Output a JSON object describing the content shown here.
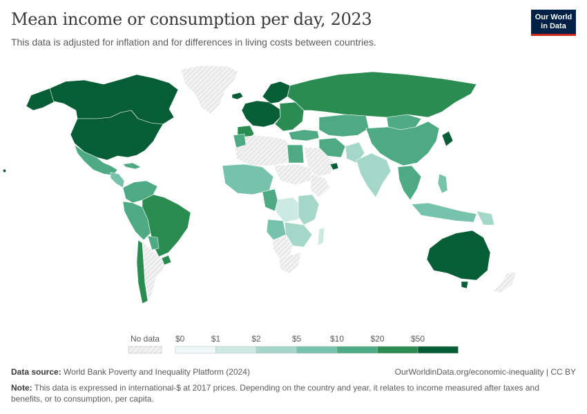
{
  "header": {
    "title": "Mean income or consumption per day, 2023",
    "subtitle": "This data is adjusted for inflation and for differences in living costs between countries."
  },
  "logo": {
    "line1": "Our World",
    "line2": "in Data"
  },
  "legend": {
    "no_data_label": "No data",
    "bins": [
      "$0",
      "$1",
      "$2",
      "$5",
      "$10",
      "$20",
      "$50"
    ],
    "colors": [
      "#eef8f6",
      "#cdeae2",
      "#a5d7c9",
      "#76c2ab",
      "#4daa82",
      "#2b8c52",
      "#075e36"
    ],
    "no_data_color": "#e8e8e8"
  },
  "footer": {
    "source_label": "Data source:",
    "source_text": "World Bank Poverty and Inequality Platform (2024)",
    "credit": "OurWorldinData.org/economic-inequality | CC BY",
    "note_label": "Note:",
    "note_text": "This data is expressed in international-$ at 2017 prices. Depending on the country and year, it relates to income measured after taxes and benefits, or to consumption, per capita."
  },
  "icons": {
    "logo": "owid-logo-icon"
  }
}
